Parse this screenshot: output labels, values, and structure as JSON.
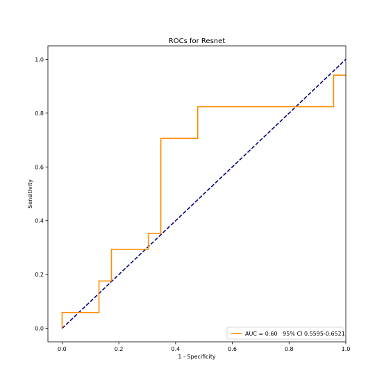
{
  "chart_data": {
    "type": "line",
    "title": "ROCs for Resnet",
    "xlabel": "1 - Specificity",
    "ylabel": "Sensitivity",
    "xlim": [
      -0.05,
      1.0
    ],
    "ylim": [
      -0.05,
      1.05
    ],
    "x_ticks": [
      0.0,
      0.2,
      0.4,
      0.6,
      0.8,
      1.0
    ],
    "x_tick_labels": [
      "0.0",
      "0.2",
      "0.4",
      "0.6",
      "0.8",
      "1.0"
    ],
    "y_ticks": [
      0.0,
      0.2,
      0.4,
      0.6,
      0.8,
      1.0
    ],
    "y_tick_labels": [
      "0.0",
      "0.2",
      "0.4",
      "0.6",
      "0.8",
      "1.0"
    ],
    "grid": false,
    "legend_position": "bottom-right",
    "series": [
      {
        "name": "AUC = 0.60   95% CI 0.5595-0.6521",
        "color": "#ff8c00",
        "style": "solid",
        "x": [
          0.0,
          0.0,
          0.13,
          0.13,
          0.174,
          0.174,
          0.304,
          0.304,
          0.348,
          0.348,
          0.478,
          0.478,
          0.957,
          0.957,
          1.0
        ],
        "y": [
          0.0,
          0.059,
          0.059,
          0.176,
          0.176,
          0.294,
          0.294,
          0.353,
          0.353,
          0.706,
          0.706,
          0.824,
          0.824,
          0.941,
          0.941
        ]
      },
      {
        "color": "#000080",
        "style": "dashed",
        "x": [
          0.0,
          1.0
        ],
        "y": [
          0.0,
          1.0
        ]
      }
    ]
  }
}
